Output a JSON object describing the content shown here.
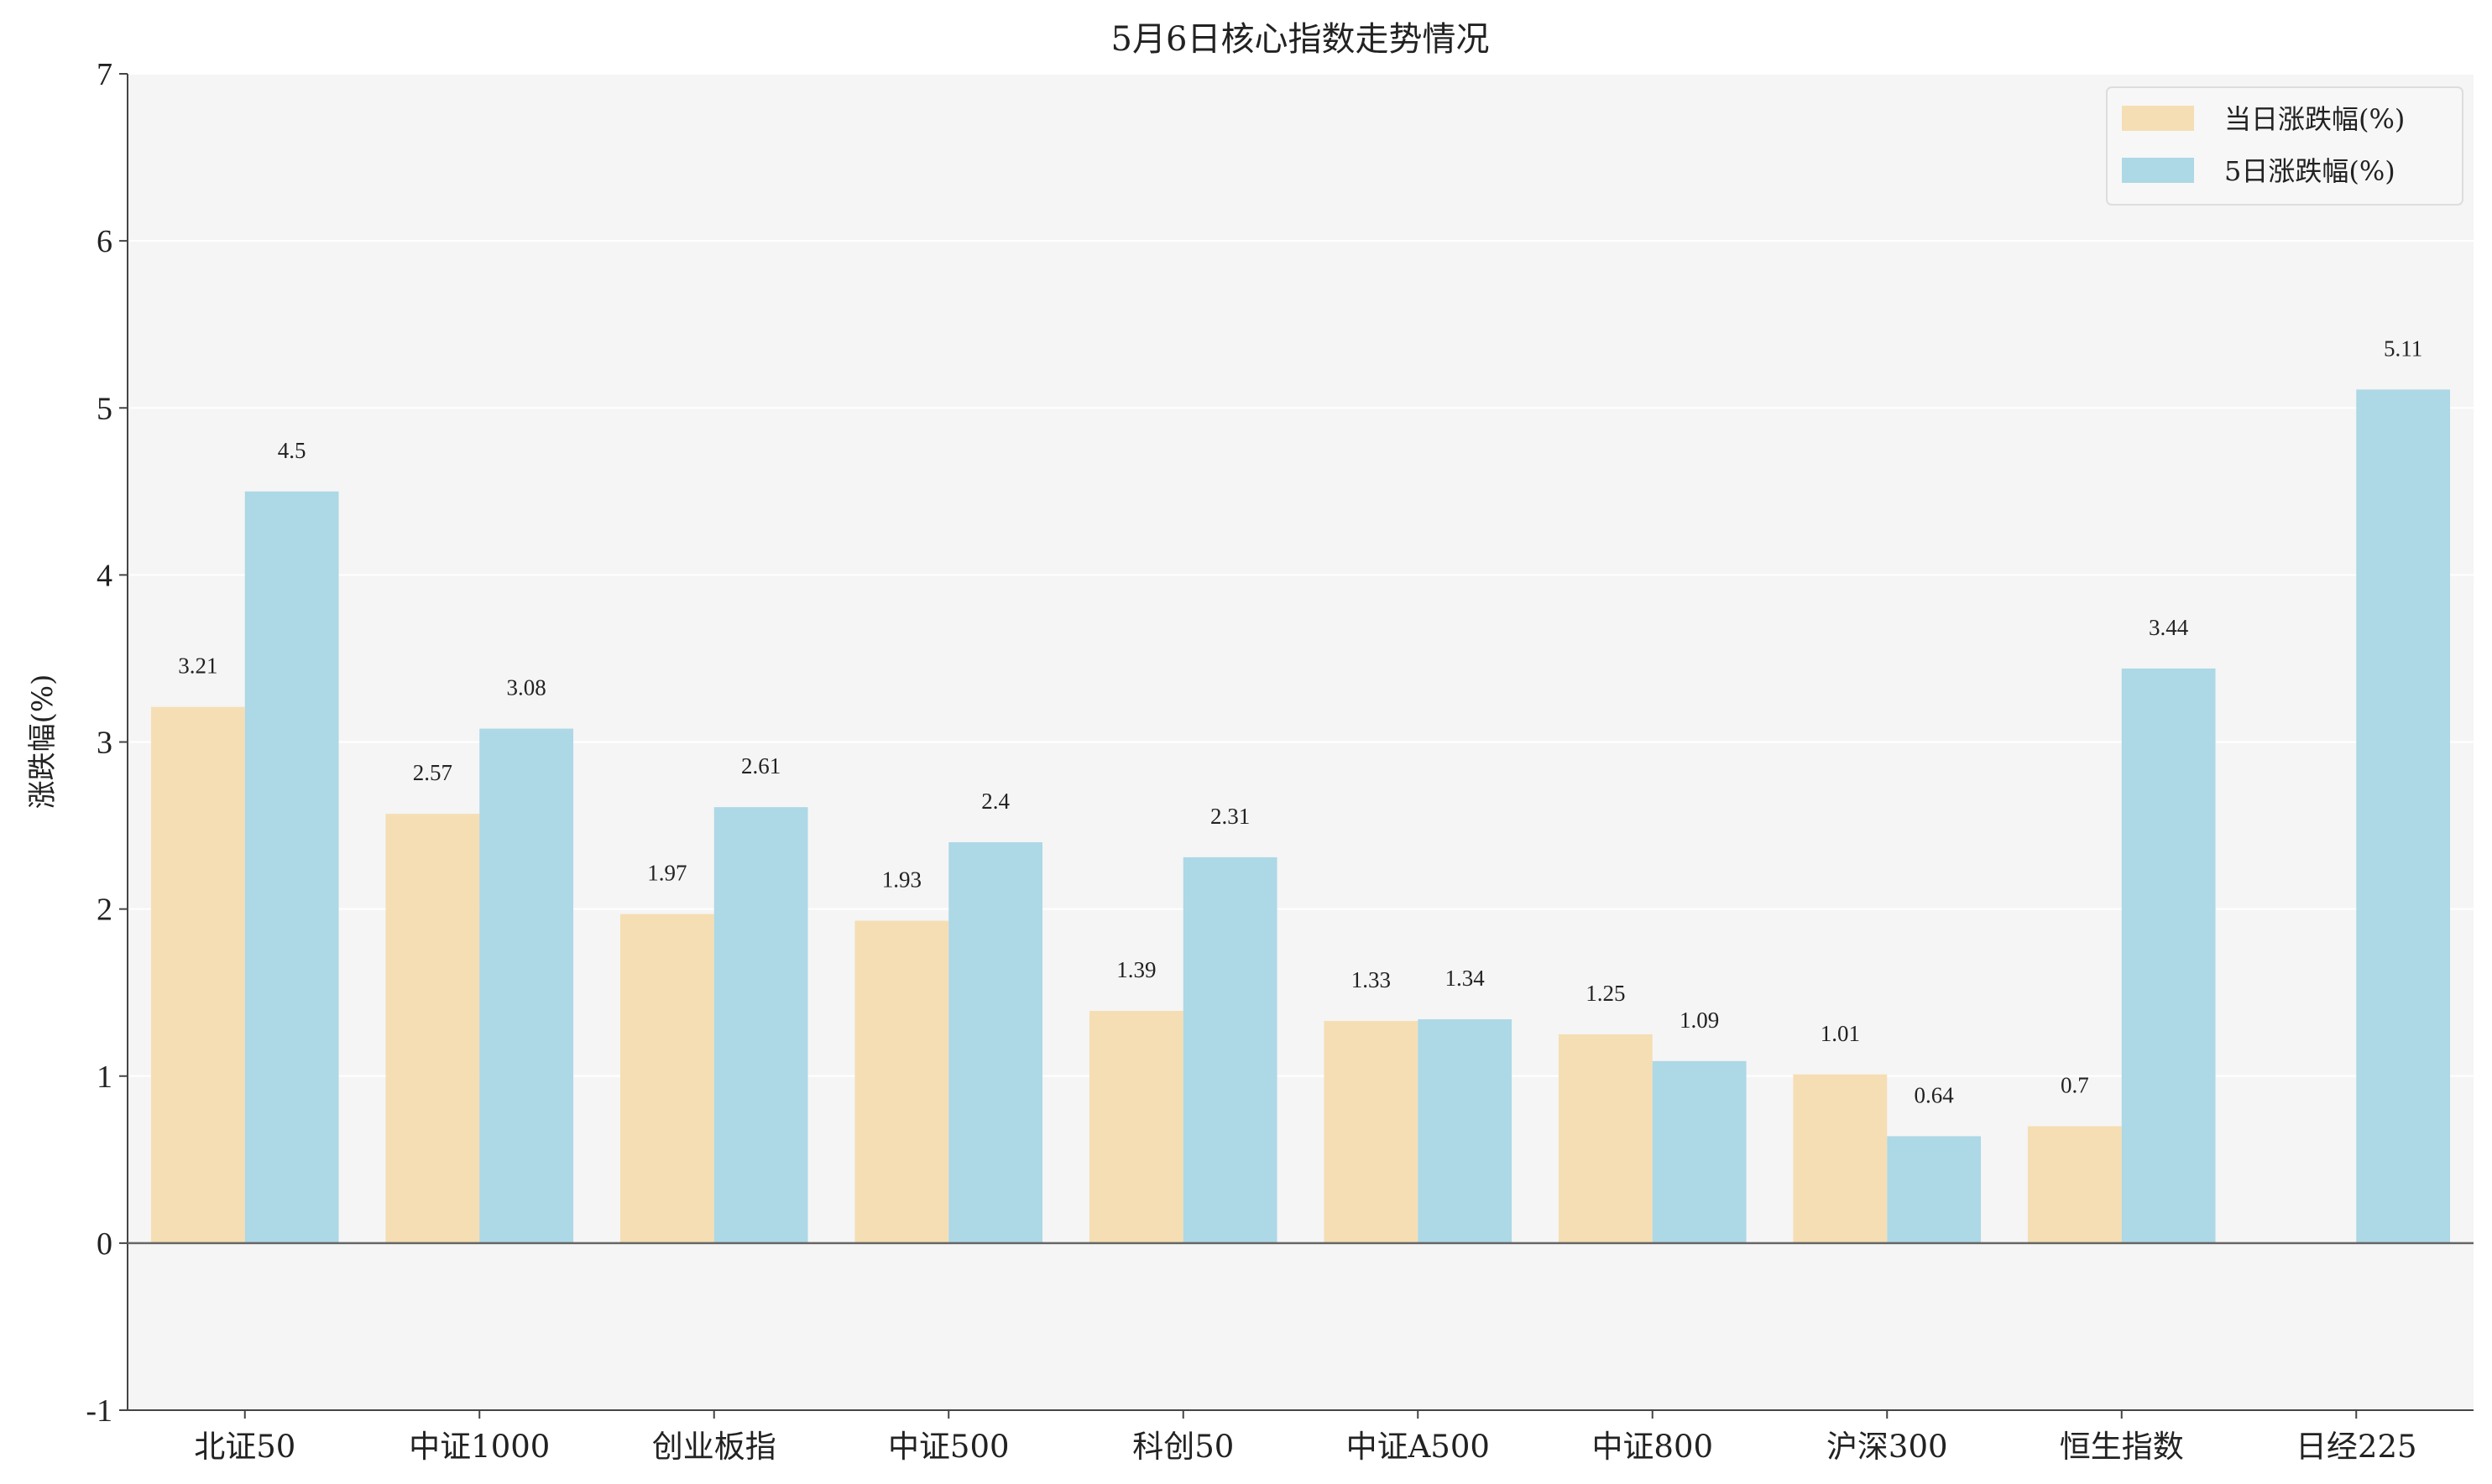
{
  "chart_data": {
    "type": "bar",
    "title": "5月6日核心指数走势情况",
    "xlabel": "",
    "ylabel": "涨跌幅(%)",
    "ylim": [
      -1,
      7
    ],
    "yticks": [
      "-1",
      "0",
      "1",
      "2",
      "3",
      "4",
      "5",
      "6",
      "7"
    ],
    "categories": [
      "北证50",
      "中证1000",
      "创业板指",
      "中证500",
      "科创50",
      "中证A500",
      "中证800",
      "沪深300",
      "恒生指数",
      "日经225"
    ],
    "series": [
      {
        "name": "当日涨跌幅(%)",
        "color": "#f5deb3",
        "values": [
          3.21,
          2.57,
          1.97,
          1.93,
          1.39,
          1.33,
          1.25,
          1.01,
          0.7,
          null
        ],
        "labels": [
          "3.21",
          "2.57",
          "1.97",
          "1.93",
          "1.39",
          "1.33",
          "1.25",
          "1.01",
          "0.7",
          ""
        ]
      },
      {
        "name": "5日涨跌幅(%)",
        "color": "#add8e6",
        "values": [
          4.5,
          3.08,
          2.61,
          2.4,
          2.31,
          1.34,
          1.09,
          0.64,
          3.44,
          5.11
        ],
        "labels": [
          "4.5",
          "3.08",
          "2.61",
          "2.4",
          "2.31",
          "1.34",
          "1.09",
          "0.64",
          "3.44",
          "5.11"
        ]
      }
    ],
    "grid": true,
    "legend_position": "top-right",
    "plot_background": "#f5f5f5"
  }
}
